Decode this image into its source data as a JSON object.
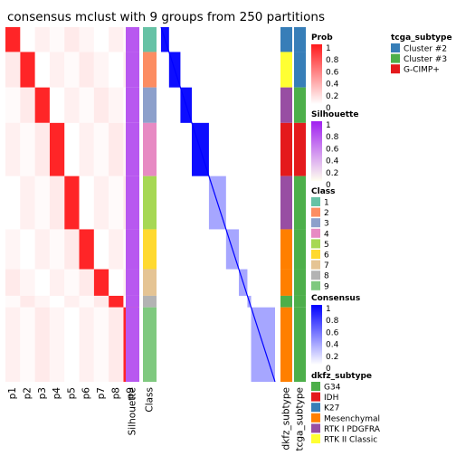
{
  "chart_data": {
    "type": "heatmap",
    "title": "consensus mclust with 9 groups from 250 partitions",
    "prob_columns": [
      "p1",
      "p2",
      "p3",
      "p4",
      "p5",
      "p6",
      "p7",
      "p8",
      "p9"
    ],
    "annotation_columns": [
      "Silhouette",
      "Class"
    ],
    "right_annotation_columns": [
      "dkfz_subtype",
      "tcga_subtype"
    ],
    "class_groups": [
      {
        "id": 1,
        "rows": [
          0,
          27
        ],
        "color": "#66C2A5"
      },
      {
        "id": 2,
        "rows": [
          28,
          67
        ],
        "color": "#FC8D62"
      },
      {
        "id": 3,
        "rows": [
          68,
          107
        ],
        "color": "#8DA0CB"
      },
      {
        "id": 4,
        "rows": [
          108,
          167
        ],
        "color": "#E78AC3"
      },
      {
        "id": 5,
        "rows": [
          168,
          227
        ],
        "color": "#A6D854"
      },
      {
        "id": 6,
        "rows": [
          228,
          272
        ],
        "color": "#FFD92F"
      },
      {
        "id": 7,
        "rows": [
          273,
          302
        ],
        "color": "#E5C494"
      },
      {
        "id": 8,
        "rows": [
          303,
          315
        ],
        "color": "#B3B3B3"
      },
      {
        "id": 9,
        "rows": [
          316,
          399
        ],
        "color": "#7FC97F"
      }
    ],
    "total_rows": 400,
    "legends": {
      "tcga_subtype": {
        "title": "tcga_subtype",
        "items": [
          {
            "label": "Cluster #2",
            "color": "#377EB8"
          },
          {
            "label": "Cluster #3",
            "color": "#4DAF4A"
          },
          {
            "label": "G-CIMP+",
            "color": "#E41A1C"
          }
        ]
      },
      "prob": {
        "title": "Prob",
        "ticks": [
          "1",
          "0.8",
          "0.6",
          "0.4",
          "0.2",
          "0"
        ]
      },
      "silhouette": {
        "title": "Silhouette",
        "ticks": [
          "1",
          "0.8",
          "0.6",
          "0.4",
          "0.2",
          "0"
        ]
      },
      "class": {
        "title": "Class",
        "items": [
          "1",
          "2",
          "3",
          "4",
          "5",
          "6",
          "7",
          "8",
          "9"
        ]
      },
      "consensus": {
        "title": "Consensus",
        "ticks": [
          "1",
          "0.8",
          "0.6",
          "0.4",
          "0.2",
          "0"
        ]
      },
      "dkfz_subtype": {
        "title": "dkfz_subtype",
        "items": [
          {
            "label": "G34",
            "color": "#4DAF4A"
          },
          {
            "label": "IDH",
            "color": "#E41A1C"
          },
          {
            "label": "K27",
            "color": "#377EB8"
          },
          {
            "label": "Mesenchymal",
            "color": "#FF7F00"
          },
          {
            "label": "RTK I PDGFRA",
            "color": "#984EA3"
          },
          {
            "label": "RTK II Classic",
            "color": "#FFFF33"
          }
        ]
      }
    }
  }
}
